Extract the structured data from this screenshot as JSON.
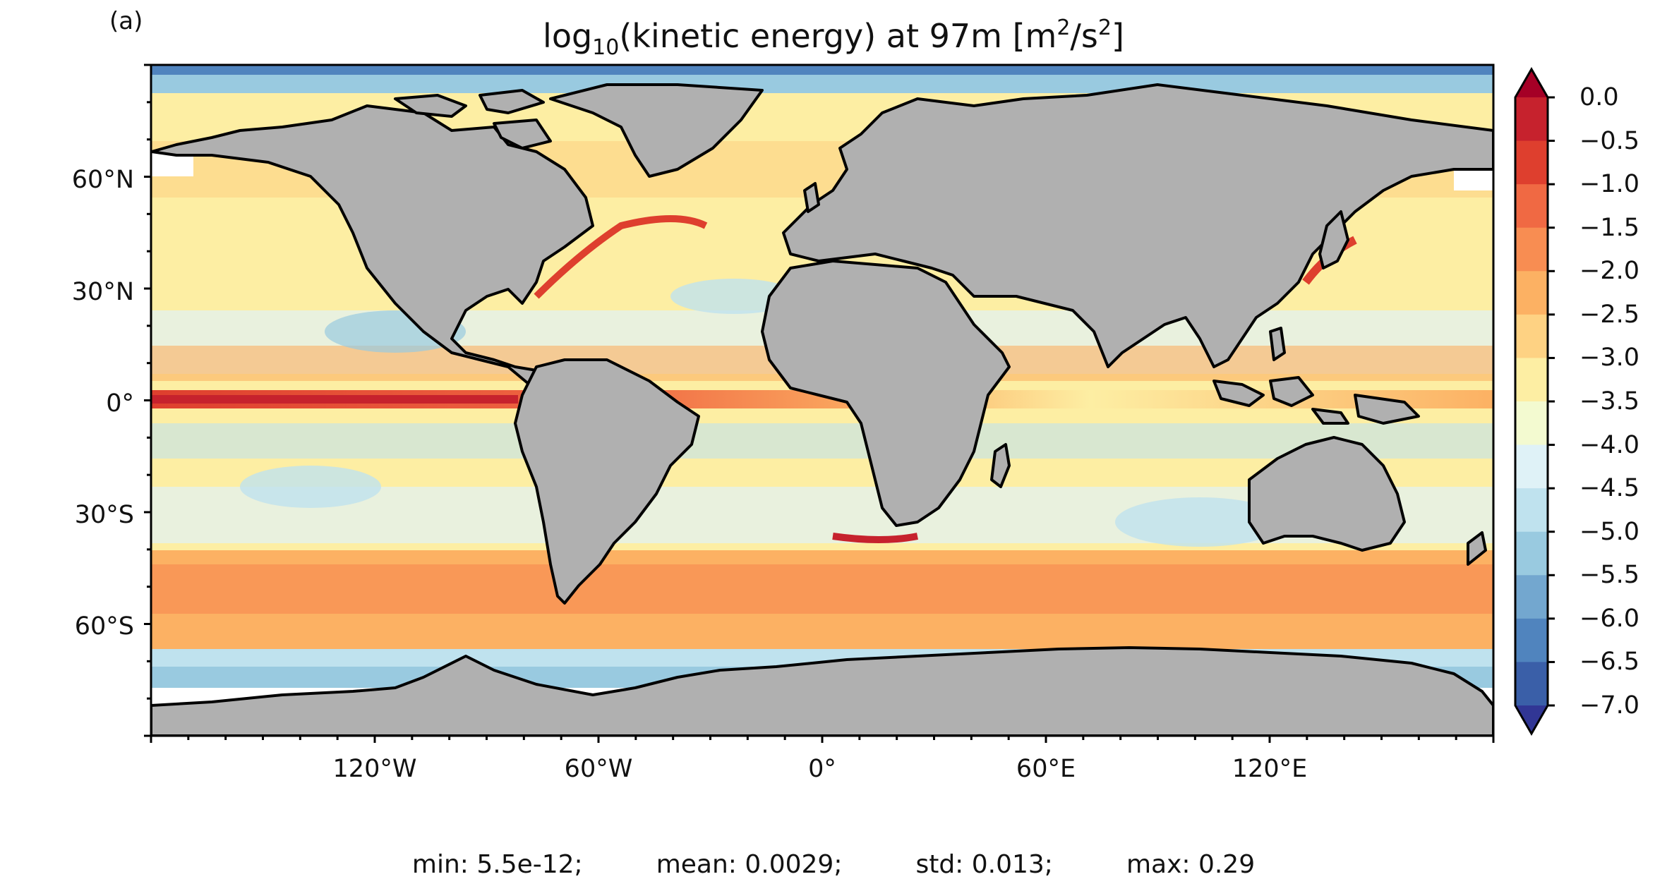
{
  "figure": {
    "panel_label": "(a)",
    "title_prefix": "log",
    "title_sub": "10",
    "title_mid": "(kinetic energy) at 97m [m",
    "title_sup1": "2",
    "title_sep": "/s",
    "title_sup2": "2",
    "title_end": "]"
  },
  "map": {
    "projection": "PlateCarree",
    "land_color": "#b0b0b0",
    "coast_color": "#000000",
    "lat_ticks": [
      "60°N",
      "30°N",
      "0°",
      "30°S",
      "60°S"
    ],
    "lon_ticks": [
      "120°W",
      "60°W",
      "0°",
      "60°E",
      "120°E"
    ]
  },
  "colorbar": {
    "colormap": "RdYlBu_r",
    "extend": "both",
    "levels": [
      0.0,
      -0.5,
      -1.0,
      -1.5,
      -2.0,
      -2.5,
      -3.0,
      -3.5,
      -4.0,
      -4.5,
      -5.0,
      -5.5,
      -6.0,
      -6.5,
      -7.0
    ],
    "tick_labels": [
      "0.0",
      "−0.5",
      "−1.0",
      "−1.5",
      "−2.0",
      "−2.5",
      "−3.0",
      "−3.5",
      "−4.0",
      "−4.5",
      "−5.0",
      "−5.5",
      "−6.0",
      "−6.5",
      "−7.0"
    ],
    "colors": [
      "#a50026",
      "#c6222d",
      "#de3f2e",
      "#f06943",
      "#f88d52",
      "#fcb163",
      "#fed283",
      "#fdeea3",
      "#f3fad0",
      "#dff2f7",
      "#bfe2ee",
      "#99cae0",
      "#73a7cf",
      "#5084be",
      "#3a5fa8",
      "#313695"
    ]
  },
  "stats": {
    "min": "min: 5.5e-12;",
    "mean": "mean: 0.0029;",
    "std": "std: 0.013;",
    "max": "max: 0.29"
  }
}
